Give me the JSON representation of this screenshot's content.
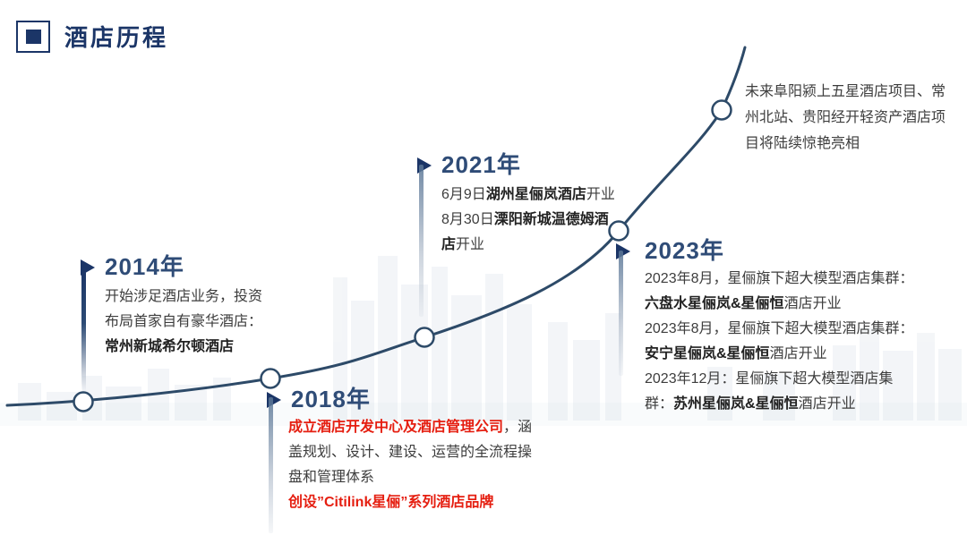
{
  "slide": {
    "title": "酒店历程",
    "colors": {
      "title_navy": "#1b3567",
      "year_blue": "#2f4c77",
      "body_text": "#3d3d3d",
      "body_bold": "#222222",
      "highlight_red": "#e51e10",
      "curve_blue": "#2d4a68",
      "background": "#ffffff",
      "watermark_gray_blue": "#b9c7d6"
    },
    "icons": {
      "title_bullet": "square-in-square-icon",
      "milestone_marker": "right-triangle-icon",
      "curve_node": "white-circle-marker"
    }
  },
  "timeline": {
    "curve": {
      "node_count": 5
    },
    "milestones": [
      {
        "year": "2014年",
        "lines": [
          [
            {
              "text": "开始涉足酒店业务，投资",
              "style": "normal"
            }
          ],
          [
            {
              "text": "布局首家自有豪华酒店：",
              "style": "normal"
            }
          ],
          [
            {
              "text": "常州新城希尔顿酒店",
              "style": "bold"
            }
          ]
        ]
      },
      {
        "year": "2018年",
        "lines": [
          [
            {
              "text": "成立酒店开发中心及酒店管理公司",
              "style": "redbold"
            },
            {
              "text": "，涵",
              "style": "normal"
            }
          ],
          [
            {
              "text": "盖规划、设计、建设、运营的全流程操",
              "style": "normal"
            }
          ],
          [
            {
              "text": "盘和管理体系",
              "style": "normal"
            }
          ],
          [
            {
              "text": "创设”Citilink星俪”系列酒店品牌",
              "style": "redbold"
            }
          ]
        ]
      },
      {
        "year": "2021年",
        "lines": [
          [
            {
              "text": "6月9日",
              "style": "normal"
            },
            {
              "text": "湖州星俪岚酒店",
              "style": "bold"
            },
            {
              "text": "开业",
              "style": "normal"
            }
          ],
          [
            {
              "text": "8月30日",
              "style": "normal"
            },
            {
              "text": "溧阳新城温德姆酒",
              "style": "bold"
            }
          ],
          [
            {
              "text": "店",
              "style": "bold"
            },
            {
              "text": "开业",
              "style": "normal"
            }
          ]
        ]
      },
      {
        "year": "2023年",
        "lines": [
          [
            {
              "text": "2023年8月，星俪旗下超大模型酒店集群：",
              "style": "normal"
            }
          ],
          [
            {
              "text": "六盘水星俪岚&星俪恒",
              "style": "bold"
            },
            {
              "text": "酒店开业",
              "style": "normal"
            }
          ],
          [
            {
              "text": "2023年8月，星俪旗下超大模型酒店集群：",
              "style": "normal"
            }
          ],
          [
            {
              "text": "安宁星俪岚&星俪恒",
              "style": "bold"
            },
            {
              "text": "酒店开业",
              "style": "normal"
            }
          ],
          [
            {
              "text": "2023年12月：星俪旗下超大模型酒店集",
              "style": "normal"
            }
          ],
          [
            {
              "text": "群：",
              "style": "normal"
            },
            {
              "text": "苏州星俪岚&星俪恒",
              "style": "bold"
            },
            {
              "text": "酒店开业",
              "style": "normal"
            }
          ]
        ]
      }
    ],
    "future_note": {
      "lines": [
        [
          {
            "text": "未来阜阳颍上五星酒店项目、常",
            "style": "normal"
          }
        ],
        [
          {
            "text": "州北站、贵阳经开轻资产酒店项",
            "style": "normal"
          }
        ],
        [
          {
            "text": "目将陆续惊艳亮相",
            "style": "normal"
          }
        ]
      ]
    }
  }
}
